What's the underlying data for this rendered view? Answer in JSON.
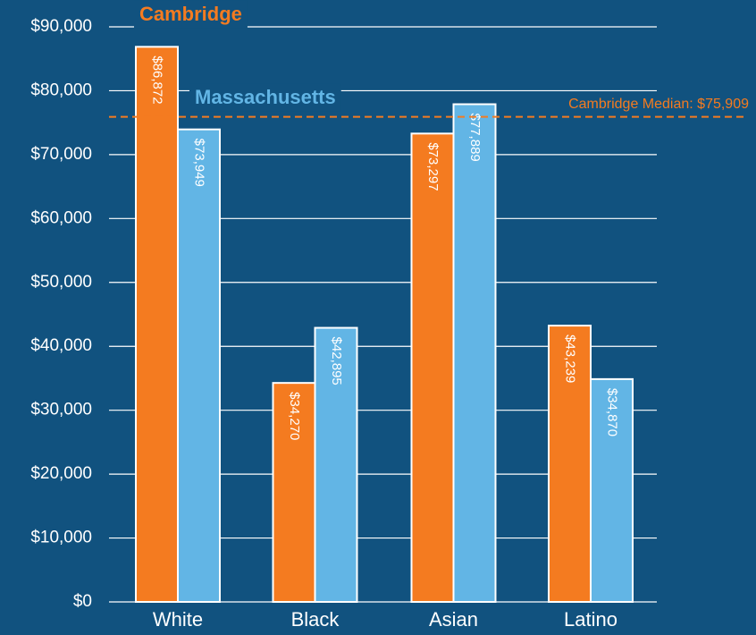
{
  "chart_data": {
    "type": "bar",
    "categories": [
      "White",
      "Black",
      "Asian",
      "Latino"
    ],
    "series": [
      {
        "name": "Cambridge",
        "color": "#f47b20",
        "values": [
          86872,
          34270,
          73297,
          43239
        ],
        "value_labels": [
          "$86,872",
          "$34,270",
          "$73,297",
          "$43,239"
        ]
      },
      {
        "name": "Massachusetts",
        "color": "#62b5e5",
        "values": [
          73949,
          42895,
          77889,
          34870
        ],
        "value_labels": [
          "$73,949",
          "$42,895",
          "$77,889",
          "$34,870"
        ]
      }
    ],
    "ylim": [
      0,
      90000
    ],
    "yticks": [
      {
        "value": 0,
        "label": "$0"
      },
      {
        "value": 10000,
        "label": "$10,000"
      },
      {
        "value": 20000,
        "label": "$20,000"
      },
      {
        "value": 30000,
        "label": "$30,000"
      },
      {
        "value": 40000,
        "label": "$40,000"
      },
      {
        "value": 50000,
        "label": "$50,000"
      },
      {
        "value": 60000,
        "label": "$60,000"
      },
      {
        "value": 70000,
        "label": "$70,000"
      },
      {
        "value": 80000,
        "label": "$80,000"
      },
      {
        "value": 90000,
        "label": "$90,000"
      }
    ],
    "grid": true,
    "reference_line": {
      "value": 75909,
      "label": "Cambridge Median: $75,909",
      "color": "#f47b20"
    }
  }
}
